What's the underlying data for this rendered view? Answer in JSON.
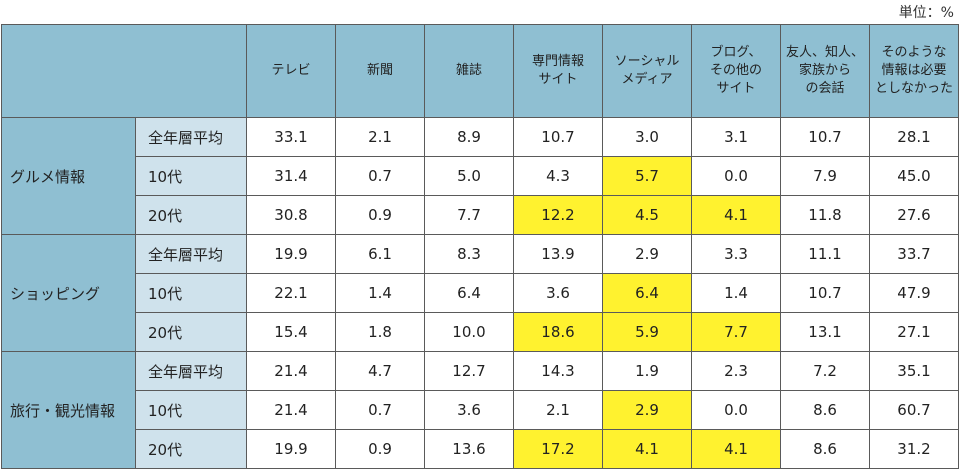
{
  "unit_label": "単位：%",
  "chart_data": {
    "type": "table",
    "columns": [
      "テレビ",
      "新聞",
      "雑誌",
      "専門情報\nサイト",
      "ソーシャル\nメディア",
      "ブログ、\nその他の\nサイト",
      "友人、知人、\n家族から\nの会話",
      "そのような\n情報は必要\nとしなかった"
    ],
    "groups": [
      {
        "name": "グルメ情報",
        "rows": [
          {
            "label": "全年層平均",
            "values": [
              "33.1",
              "2.1",
              "8.9",
              "10.7",
              "3.0",
              "3.1",
              "10.7",
              "28.1"
            ],
            "highlight": [
              false,
              false,
              false,
              false,
              false,
              false,
              false,
              false
            ]
          },
          {
            "label": "10代",
            "values": [
              "31.4",
              "0.7",
              "5.0",
              "4.3",
              "5.7",
              "0.0",
              "7.9",
              "45.0"
            ],
            "highlight": [
              false,
              false,
              false,
              false,
              true,
              false,
              false,
              false
            ]
          },
          {
            "label": "20代",
            "values": [
              "30.8",
              "0.9",
              "7.7",
              "12.2",
              "4.5",
              "4.1",
              "11.8",
              "27.6"
            ],
            "highlight": [
              false,
              false,
              false,
              true,
              true,
              true,
              false,
              false
            ]
          }
        ]
      },
      {
        "name": "ショッピング",
        "rows": [
          {
            "label": "全年層平均",
            "values": [
              "19.9",
              "6.1",
              "8.3",
              "13.9",
              "2.9",
              "3.3",
              "11.1",
              "33.7"
            ],
            "highlight": [
              false,
              false,
              false,
              false,
              false,
              false,
              false,
              false
            ]
          },
          {
            "label": "10代",
            "values": [
              "22.1",
              "1.4",
              "6.4",
              "3.6",
              "6.4",
              "1.4",
              "10.7",
              "47.9"
            ],
            "highlight": [
              false,
              false,
              false,
              false,
              true,
              false,
              false,
              false
            ]
          },
          {
            "label": "20代",
            "values": [
              "15.4",
              "1.8",
              "10.0",
              "18.6",
              "5.9",
              "7.7",
              "13.1",
              "27.1"
            ],
            "highlight": [
              false,
              false,
              false,
              true,
              true,
              true,
              false,
              false
            ]
          }
        ]
      },
      {
        "name": "旅行・観光情報",
        "rows": [
          {
            "label": "全年層平均",
            "values": [
              "21.4",
              "4.7",
              "12.7",
              "14.3",
              "1.9",
              "2.3",
              "7.2",
              "35.1"
            ],
            "highlight": [
              false,
              false,
              false,
              false,
              false,
              false,
              false,
              false
            ]
          },
          {
            "label": "10代",
            "values": [
              "21.4",
              "0.7",
              "3.6",
              "2.1",
              "2.9",
              "0.0",
              "8.6",
              "60.7"
            ],
            "highlight": [
              false,
              false,
              false,
              false,
              true,
              false,
              false,
              false
            ]
          },
          {
            "label": "20代",
            "values": [
              "19.9",
              "0.9",
              "13.6",
              "17.2",
              "4.1",
              "4.1",
              "8.6",
              "31.2"
            ],
            "highlight": [
              false,
              false,
              false,
              true,
              true,
              true,
              false,
              false
            ]
          }
        ]
      }
    ],
    "colors": {
      "header": "#8fbfd2",
      "sublabel": "#cfe2ec",
      "highlight": "#fff22f"
    }
  }
}
